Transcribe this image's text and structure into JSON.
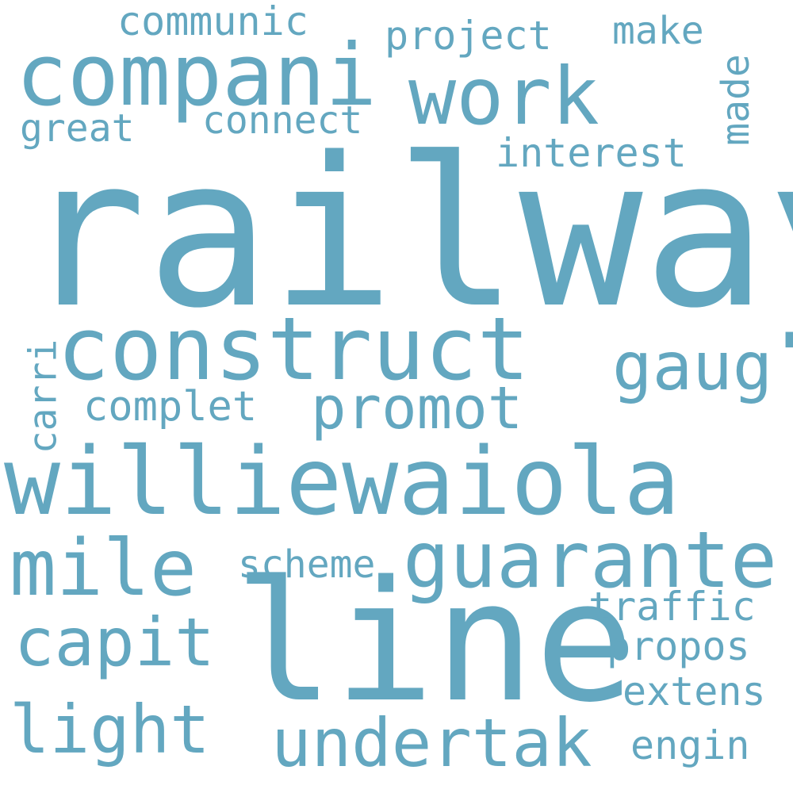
{
  "color": "#63a7c0",
  "background": "#ffffff",
  "words": {
    "railway": "railway",
    "line": "line",
    "williewaiola": "williewaiola",
    "construct": "construct",
    "compani": "compani",
    "work": "work",
    "guarante": "guarante",
    "mile": "mile",
    "undertak": "undertak",
    "capit": "capit",
    "light": "light",
    "gaug": "gaug",
    "promot": "promot",
    "interest": "interest",
    "traffic": "traffic",
    "propos": "propos",
    "extens": "extens",
    "engin": "engin",
    "complet": "complet",
    "scheme": "scheme",
    "communic": "communic",
    "project": "project",
    "make": "make",
    "great": "great",
    "connect": "connect",
    "made": "made",
    "carri": "carri"
  }
}
